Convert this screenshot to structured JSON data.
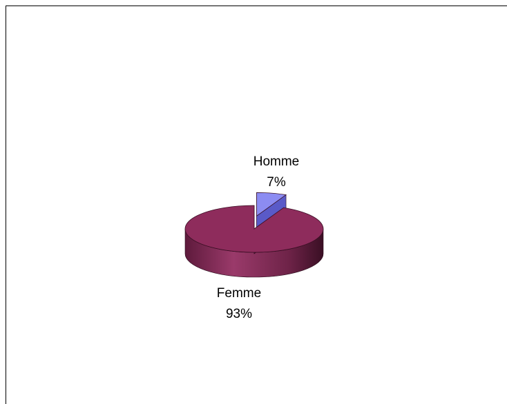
{
  "chart_data": {
    "type": "pie",
    "style": "3d-exploded",
    "slices": [
      {
        "label": "Homme",
        "value": 7,
        "value_label": "7%",
        "color": "#8c8cf2"
      },
      {
        "label": "Femme",
        "value": 93,
        "value_label": "93%",
        "color": "#8e2c5c"
      }
    ]
  }
}
